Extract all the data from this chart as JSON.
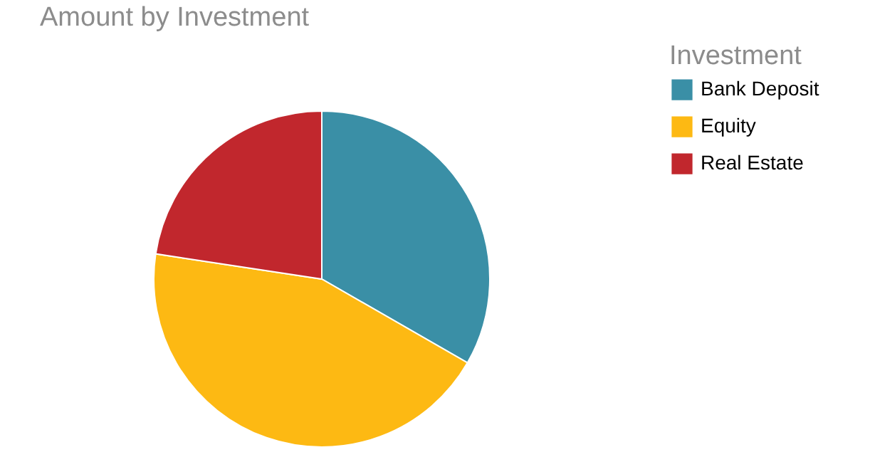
{
  "chart_data": {
    "type": "pie",
    "title": "Amount by Investment",
    "legend_title": "Investment",
    "categories": [
      "Bank Deposit",
      "Equity",
      "Real Estate"
    ],
    "values": [
      33.3,
      44.1,
      22.6
    ],
    "colors": [
      "#3a8fa6",
      "#fdb913",
      "#c1272d"
    ],
    "legend": "top right"
  }
}
